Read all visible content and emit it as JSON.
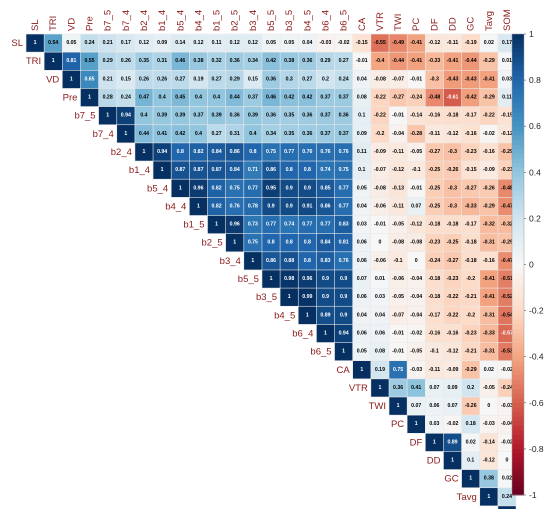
{
  "chart_data": {
    "type": "heatmap",
    "variables": [
      "SL",
      "TRI",
      "VD",
      "Pre",
      "b7_5",
      "b7_4",
      "b2_4",
      "b1_4",
      "b5_4",
      "b4_4",
      "b1_5",
      "b2_5",
      "b3_4",
      "b5_5",
      "b3_5",
      "b4_5",
      "b6_4",
      "b6_5",
      "CA",
      "VTR",
      "TWI",
      "PC",
      "DF",
      "DD",
      "GC",
      "Tavg",
      "SOM"
    ],
    "rows": [
      [
        1,
        0.54,
        0.05,
        0.24,
        0.21,
        0.17,
        0.12,
        0.09,
        0.14,
        0.12,
        0.11,
        0.12,
        0.12,
        0.05,
        0.05,
        0.04,
        -0.03,
        -0.02,
        -0.15,
        -0.55,
        -0.49,
        -0.41,
        -0.12,
        -0.11,
        -0.19,
        0.02,
        0.17
      ],
      [
        1,
        0.81,
        0.55,
        0.29,
        0.26,
        0.35,
        0.31,
        0.46,
        0.38,
        0.32,
        0.36,
        0.34,
        0.42,
        0.38,
        0.36,
        0.29,
        0.27,
        -0.01,
        -0.4,
        -0.44,
        -0.41,
        -0.33,
        -0.41,
        -0.44,
        -0.29,
        0.01
      ],
      [
        1,
        0.65,
        0.21,
        0.15,
        0.26,
        0.26,
        0.27,
        0.19,
        0.27,
        0.29,
        0.15,
        0.36,
        0.3,
        0.27,
        0.2,
        0.24,
        0.04,
        -0.08,
        -0.07,
        -0.01,
        -0.3,
        -0.43,
        -0.43,
        -0.41,
        0.03
      ],
      [
        1,
        0.28,
        0.24,
        0.47,
        0.4,
        0.45,
        0.4,
        0.4,
        0.44,
        0.37,
        0.46,
        0.42,
        0.42,
        0.37,
        0.37,
        0.08,
        -0.22,
        -0.27,
        -0.24,
        -0.48,
        -0.61,
        -0.42,
        -0.29,
        0.11
      ],
      [
        1,
        0.94,
        0.4,
        0.39,
        0.39,
        0.37,
        0.39,
        0.36,
        0.39,
        0.36,
        0.35,
        0.36,
        0.37,
        0.36,
        0.1,
        -0.22,
        -0.01,
        -0.14,
        -0.16,
        -0.18,
        -0.17,
        -0.22,
        -0.15
      ],
      [
        1,
        0.44,
        0.41,
        0.42,
        0.4,
        0.27,
        0.31,
        0.4,
        0.34,
        0.35,
        0.36,
        0.37,
        0.37,
        0.09,
        -0.2,
        -0.04,
        -0.28,
        -0.11,
        -0.12,
        -0.16,
        -0.02,
        -0.12
      ],
      [
        1,
        0.94,
        0.8,
        0.82,
        0.84,
        0.86,
        0.8,
        0.75,
        0.77,
        0.76,
        0.76,
        0.76,
        0.11,
        -0.09,
        -0.11,
        -0.05,
        -0.27,
        -0.3,
        -0.23,
        -0.16,
        -0.29
      ],
      [
        1,
        0.87,
        0.87,
        0.87,
        0.84,
        0.71,
        0.86,
        0.8,
        0.8,
        0.74,
        0.75,
        0.1,
        -0.07,
        -0.12,
        -0.1,
        -0.25,
        -0.26,
        -0.15,
        -0.09,
        -0.23
      ],
      [
        1,
        0.96,
        0.82,
        0.75,
        0.77,
        0.95,
        0.9,
        0.9,
        0.85,
        0.77,
        0.05,
        -0.08,
        -0.13,
        -0.01,
        -0.25,
        -0.3,
        -0.27,
        -0.26,
        -0.48
      ],
      [
        1,
        0.82,
        0.76,
        0.78,
        0.9,
        0.9,
        0.91,
        0.86,
        0.77,
        0.04,
        -0.06,
        -0.11,
        0.07,
        -0.25,
        -0.3,
        -0.33,
        -0.29,
        -0.47
      ],
      [
        1,
        0.96,
        0.73,
        0.77,
        0.74,
        0.77,
        0.77,
        0.83,
        0.03,
        -0.01,
        -0.05,
        -0.12,
        -0.18,
        -0.18,
        -0.17,
        -0.32,
        -0.32
      ],
      [
        1,
        0.75,
        0.8,
        0.8,
        0.8,
        0.84,
        0.81,
        0.06,
        0,
        -0.08,
        -0.08,
        -0.23,
        -0.25,
        -0.18,
        -0.31,
        -0.29
      ],
      [
        1,
        0.86,
        0.88,
        0.8,
        0.83,
        0.76,
        0.06,
        -0.06,
        -0.1,
        0,
        -0.24,
        -0.27,
        -0.18,
        -0.16,
        -0.47
      ],
      [
        1,
        0.98,
        0.96,
        0.9,
        0.9,
        0.07,
        0.01,
        -0.06,
        -0.04,
        -0.18,
        -0.23,
        -0.2,
        -0.41,
        -0.51
      ],
      [
        1,
        0.99,
        0.9,
        0.9,
        0.06,
        0.03,
        -0.05,
        -0.04,
        -0.18,
        -0.22,
        -0.21,
        -0.41,
        -0.52
      ],
      [
        1,
        0.89,
        0.9,
        0.04,
        0.04,
        -0.07,
        -0.04,
        -0.17,
        -0.22,
        -0.2,
        -0.31,
        -0.54
      ],
      [
        1,
        0.94,
        0.06,
        0.06,
        -0.01,
        -0.02,
        -0.16,
        -0.16,
        -0.23,
        -0.33,
        -0.57
      ],
      [
        1,
        0.05,
        0.08,
        -0.01,
        -0.05,
        -0.1,
        -0.12,
        -0.21,
        -0.31,
        -0.53
      ],
      [
        1,
        0.19,
        0.75,
        -0.03,
        -0.11,
        -0.09,
        -0.29,
        0.02,
        -0.02
      ],
      [
        1,
        0.36,
        0.41,
        0.07,
        0.09,
        0.2,
        -0.05,
        -0.24
      ],
      [
        1,
        0.07,
        0.06,
        0.07,
        -0.26,
        0,
        -0.03
      ],
      [
        1,
        0.03,
        -0.02,
        0.18,
        -0.03,
        -0.04
      ],
      [
        1,
        0.89,
        0.02,
        -0.14,
        -0.02
      ],
      [
        1,
        0.1,
        -0.12,
        0
      ],
      [
        1,
        0.38,
        0.02
      ],
      [
        1,
        0.24
      ],
      [
        1
      ]
    ],
    "colorbar": {
      "range": [
        -1,
        1
      ],
      "ticks": [
        "1",
        "0.8",
        "0.6",
        "0.4",
        "0.2",
        "0",
        "-0.2",
        "-0.4",
        "-0.6",
        "-0.8",
        "-1"
      ]
    },
    "colors": {
      "positive": "#053061",
      "neutral": "#f7f7f7",
      "negative": "#67001f",
      "label": "#8b1a1a"
    }
  }
}
